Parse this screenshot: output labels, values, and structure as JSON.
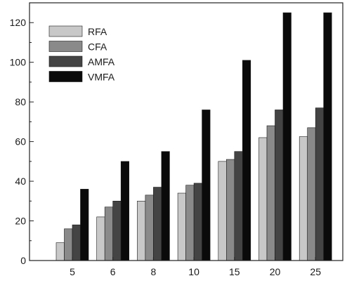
{
  "chart_data": {
    "type": "bar",
    "categories": [
      "5",
      "6",
      "8",
      "10",
      "15",
      "20",
      "25"
    ],
    "series": [
      {
        "name": "RFA",
        "color": "#c8c8c8",
        "values": [
          9,
          22,
          30,
          34,
          50,
          62,
          62.5
        ]
      },
      {
        "name": "CFA",
        "color": "#8a8a8a",
        "values": [
          16,
          27,
          33,
          38,
          51,
          68,
          67
        ]
      },
      {
        "name": "AMFA",
        "color": "#444444",
        "values": [
          18,
          30,
          37,
          39,
          55,
          76,
          77
        ]
      },
      {
        "name": "VMFA",
        "color": "#0a0a0a",
        "values": [
          36,
          50,
          55,
          76,
          101,
          125,
          125
        ]
      }
    ],
    "yticks": [
      0,
      20,
      40,
      60,
      80,
      100,
      120
    ],
    "ylim": [
      0,
      130
    ],
    "grid": false,
    "legend_position": "top-left",
    "title": "",
    "xlabel": "",
    "ylabel": ""
  }
}
